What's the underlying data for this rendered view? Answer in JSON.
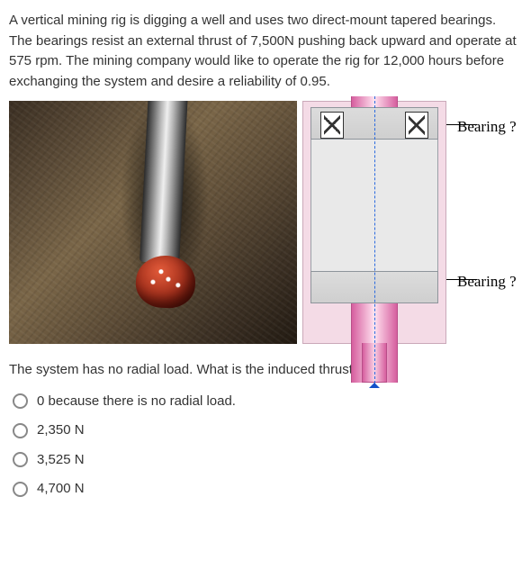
{
  "stem": "A vertical mining rig is digging a well and uses two direct-mount tapered bearings. The bearings resist an external thrust of 7,500N pushing back upward and operate at 575 rpm. The mining company would like to operate the rig for 12,000 hours before exchanging the system and desire a reliability of 0.95.",
  "diagram": {
    "label_top": "Bearing ?",
    "label_bottom": "Bearing ?"
  },
  "sub_question": "The system has no radial load. What is the induced thrust load?",
  "options": [
    "0 because there is no radial load.",
    "2,350 N",
    "3,525 N",
    "4,700 N"
  ]
}
